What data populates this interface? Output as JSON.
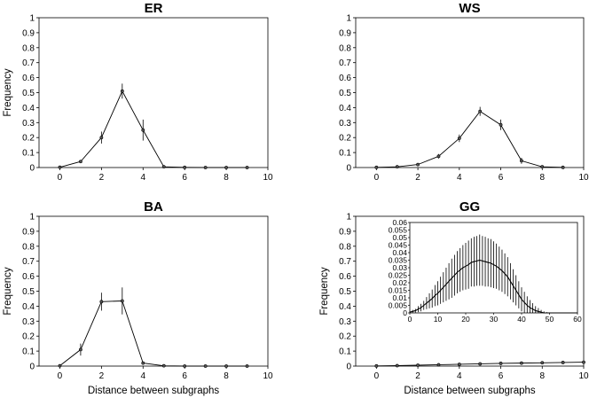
{
  "figure": {
    "ylabel": "Frequency",
    "xlabel": "Distance between subgraphs"
  },
  "chart_data": [
    {
      "type": "line",
      "title": "ER",
      "xlim": [
        -1,
        10
      ],
      "ylim": [
        0,
        1
      ],
      "xticks": [
        0,
        2,
        4,
        6,
        8,
        10
      ],
      "yticks": [
        0,
        0.1,
        0.2,
        0.3,
        0.4,
        0.5,
        0.6,
        0.7,
        0.8,
        0.9,
        1
      ],
      "ylabel": "Frequency",
      "xlabel": "",
      "x": [
        0,
        1,
        2,
        3,
        4,
        5,
        6,
        7,
        8,
        9
      ],
      "y": [
        0.002,
        0.04,
        0.2,
        0.51,
        0.25,
        0.005,
        0.001,
        0,
        0,
        0
      ],
      "err": [
        0.002,
        0.01,
        0.04,
        0.05,
        0.07,
        0.003,
        0.001,
        0,
        0,
        0
      ]
    },
    {
      "type": "line",
      "title": "WS",
      "xlim": [
        -1,
        10
      ],
      "ylim": [
        0,
        1
      ],
      "xticks": [
        0,
        2,
        4,
        6,
        8,
        10
      ],
      "yticks": [
        0,
        0.1,
        0.2,
        0.3,
        0.4,
        0.5,
        0.6,
        0.7,
        0.8,
        0.9,
        1
      ],
      "ylabel": "",
      "xlabel": "",
      "x": [
        0,
        1,
        2,
        3,
        4,
        5,
        6,
        7,
        8,
        9
      ],
      "y": [
        0.001,
        0.005,
        0.02,
        0.075,
        0.195,
        0.375,
        0.285,
        0.045,
        0.005,
        0.001
      ],
      "err": [
        0.001,
        0.003,
        0.005,
        0.015,
        0.025,
        0.03,
        0.035,
        0.02,
        0.003,
        0.001
      ]
    },
    {
      "type": "line",
      "title": "BA",
      "xlim": [
        -1,
        10
      ],
      "ylim": [
        0,
        1
      ],
      "xticks": [
        0,
        2,
        4,
        6,
        8,
        10
      ],
      "yticks": [
        0,
        0.1,
        0.2,
        0.3,
        0.4,
        0.5,
        0.6,
        0.7,
        0.8,
        0.9,
        1
      ],
      "ylabel": "Frequency",
      "xlabel": "Distance between subgraphs",
      "x": [
        0,
        1,
        2,
        3,
        4,
        5,
        6,
        7,
        8,
        9
      ],
      "y": [
        0.002,
        0.11,
        0.43,
        0.435,
        0.02,
        0.002,
        0,
        0,
        0,
        0
      ],
      "err": [
        0.002,
        0.04,
        0.06,
        0.09,
        0.01,
        0.001,
        0,
        0,
        0,
        0
      ]
    },
    {
      "type": "line",
      "title": "GG",
      "xlim": [
        -1,
        10
      ],
      "ylim": [
        0,
        1
      ],
      "xticks": [
        0,
        2,
        4,
        6,
        8,
        10
      ],
      "yticks": [
        0,
        0.1,
        0.2,
        0.3,
        0.4,
        0.5,
        0.6,
        0.7,
        0.8,
        0.9,
        1
      ],
      "ylabel": "Frequency",
      "xlabel": "Distance between subgraphs",
      "x": [
        0,
        1,
        2,
        3,
        4,
        5,
        6,
        7,
        8,
        9,
        10
      ],
      "y": [
        0.001,
        0.003,
        0.006,
        0.009,
        0.012,
        0.015,
        0.018,
        0.02,
        0.022,
        0.024,
        0.026
      ],
      "err": [
        0.001,
        0.002,
        0.003,
        0.004,
        0.004,
        0.005,
        0.005,
        0.005,
        0.005,
        0.006,
        0.006
      ],
      "inset": {
        "type": "line",
        "xlim": [
          0,
          60
        ],
        "ylim": [
          0,
          0.06
        ],
        "xticks": [
          0,
          10,
          20,
          30,
          40,
          50,
          60
        ],
        "yticks": [
          0,
          0.005,
          0.01,
          0.015,
          0.02,
          0.025,
          0.03,
          0.035,
          0.04,
          0.045,
          0.05,
          0.055,
          0.06
        ],
        "x": [
          0,
          1,
          2,
          3,
          4,
          5,
          6,
          7,
          8,
          9,
          10,
          11,
          12,
          13,
          14,
          15,
          16,
          17,
          18,
          19,
          20,
          21,
          22,
          23,
          24,
          25,
          26,
          27,
          28,
          29,
          30,
          31,
          32,
          33,
          34,
          35,
          36,
          37,
          38,
          39,
          40,
          41,
          42,
          43,
          44,
          45,
          46,
          47,
          48,
          49,
          50,
          51,
          52,
          53,
          54,
          55,
          56,
          57,
          58,
          59,
          60
        ],
        "y": [
          0.0005,
          0.001,
          0.0015,
          0.0025,
          0.0035,
          0.005,
          0.0065,
          0.008,
          0.0095,
          0.0115,
          0.013,
          0.015,
          0.017,
          0.019,
          0.021,
          0.023,
          0.025,
          0.027,
          0.0285,
          0.03,
          0.031,
          0.032,
          0.0335,
          0.034,
          0.0345,
          0.035,
          0.0345,
          0.034,
          0.0335,
          0.033,
          0.032,
          0.031,
          0.0295,
          0.028,
          0.026,
          0.024,
          0.021,
          0.018,
          0.015,
          0.012,
          0.009,
          0.007,
          0.005,
          0.0035,
          0.0025,
          0.0015,
          0.001,
          0.0005,
          0,
          0,
          0,
          0,
          0,
          0,
          0,
          0,
          0,
          0,
          0,
          0,
          0
        ],
        "err": [
          0.0005,
          0.001,
          0.0012,
          0.002,
          0.0025,
          0.003,
          0.004,
          0.005,
          0.006,
          0.007,
          0.008,
          0.009,
          0.01,
          0.011,
          0.012,
          0.013,
          0.0135,
          0.014,
          0.0145,
          0.015,
          0.0155,
          0.016,
          0.016,
          0.0165,
          0.0165,
          0.017,
          0.0165,
          0.0165,
          0.016,
          0.016,
          0.0155,
          0.015,
          0.0145,
          0.014,
          0.0135,
          0.013,
          0.012,
          0.011,
          0.01,
          0.009,
          0.008,
          0.007,
          0.006,
          0.005,
          0.004,
          0.003,
          0.0022,
          0.0015,
          0.001,
          0.0005,
          0,
          0,
          0,
          0,
          0,
          0,
          0,
          0,
          0,
          0,
          0
        ]
      }
    }
  ]
}
